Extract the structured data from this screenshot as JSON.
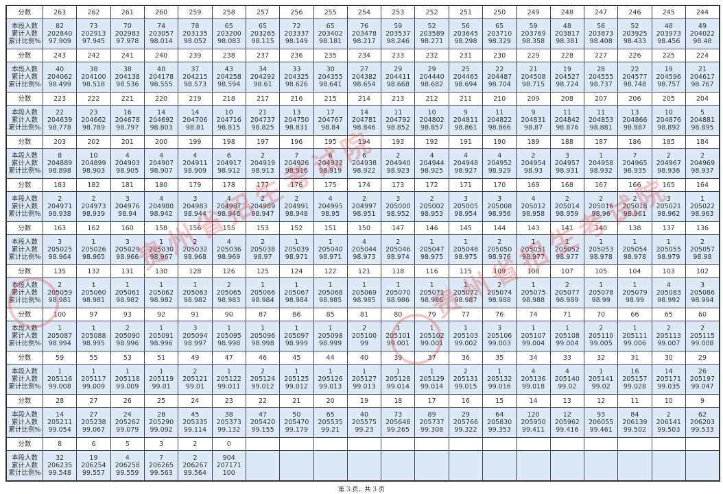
{
  "row_labels": {
    "score": "分数",
    "count": "本段人数",
    "cumulative": "累计人数",
    "percent": "累计比例%"
  },
  "watermark": "贵州省招生考试院",
  "footer": "第 3 页，共 3 页",
  "colors": {
    "data_row_bg": "#dde9f6",
    "watermark": "#dc3c3c"
  },
  "blocks": [
    {
      "scores": [
        263,
        262,
        261,
        260,
        259,
        258,
        257,
        256,
        255,
        254,
        253,
        252,
        251,
        250,
        249,
        248,
        247,
        246,
        245,
        244
      ],
      "counts": [
        82,
        73,
        70,
        74,
        78,
        65,
        65,
        72,
        65,
        76,
        59,
        52,
        56,
        65,
        59,
        48,
        56,
        52,
        48,
        49
      ],
      "cumulative": [
        202840,
        202913,
        202983,
        203057,
        203135,
        203200,
        203265,
        203337,
        203402,
        203478,
        203537,
        203589,
        203645,
        203710,
        203769,
        203817,
        203873,
        203925,
        203973,
        204022
      ],
      "percent": [
        "97.909",
        "97.945",
        "97.978",
        "98.014",
        "98.052",
        "98.083",
        "98.115",
        "98.149",
        "98.181",
        "98.217",
        "98.246",
        "98.271",
        "98.298",
        "98.329",
        "98.358",
        "98.381",
        "98.408",
        "98.433",
        "98.456",
        "98.48"
      ]
    },
    {
      "scores": [
        243,
        242,
        241,
        240,
        239,
        238,
        237,
        236,
        235,
        234,
        233,
        232,
        231,
        230,
        229,
        228,
        227,
        226,
        225,
        224
      ],
      "counts": [
        40,
        38,
        38,
        40,
        37,
        43,
        34,
        33,
        30,
        27,
        29,
        29,
        25,
        22,
        21,
        19,
        28,
        22,
        19,
        21
      ],
      "cumulative": [
        204062,
        204100,
        204138,
        204178,
        204215,
        204258,
        204292,
        204325,
        204355,
        204382,
        204411,
        204440,
        204465,
        204487,
        204508,
        204527,
        204555,
        204577,
        204596,
        204617
      ],
      "percent": [
        "98.499",
        "98.518",
        "98.536",
        "98.555",
        "98.573",
        "98.594",
        "98.61",
        "98.626",
        "98.641",
        "98.654",
        "98.668",
        "98.682",
        "98.694",
        "98.704",
        "98.715",
        "98.724",
        "98.737",
        "98.748",
        "98.757",
        "98.767"
      ]
    },
    {
      "scores": [
        223,
        222,
        221,
        220,
        219,
        218,
        217,
        216,
        215,
        214,
        213,
        212,
        211,
        210,
        209,
        208,
        207,
        206,
        205,
        204
      ],
      "counts": [
        22,
        23,
        16,
        14,
        14,
        10,
        21,
        13,
        17,
        14,
        11,
        10,
        9,
        11,
        9,
        11,
        11,
        13,
        10,
        5
      ],
      "cumulative": [
        204639,
        204662,
        204678,
        204692,
        204706,
        204716,
        204737,
        204750,
        204767,
        204781,
        204792,
        204802,
        204811,
        204822,
        204831,
        204842,
        204853,
        204866,
        204876,
        204881
      ],
      "percent": [
        "98.778",
        "98.789",
        "98.797",
        "98.803",
        "98.81",
        "98.815",
        "98.825",
        "98.831",
        "98.84",
        "98.846",
        "98.852",
        "98.857",
        "98.861",
        "98.866",
        "98.87",
        "98.876",
        "98.881",
        "98.887",
        "98.892",
        "98.895"
      ]
    },
    {
      "scores": [
        203,
        202,
        201,
        200,
        199,
        198,
        197,
        196,
        195,
        194,
        193,
        192,
        191,
        190,
        189,
        188,
        187,
        186,
        185,
        184
      ],
      "counts": [
        8,
        10,
        4,
        4,
        4,
        6,
        2,
        7,
        6,
        6,
        2,
        4,
        4,
        4,
        2,
        3,
        1,
        7,
        2,
        2
      ],
      "cumulative": [
        204889,
        204899,
        204903,
        204907,
        204911,
        204917,
        204919,
        204926,
        204932,
        204938,
        204940,
        204944,
        204948,
        204952,
        204954,
        204957,
        204958,
        204965,
        204967,
        204969
      ],
      "percent": [
        "98.898",
        "98.903",
        "98.905",
        "98.907",
        "98.909",
        "98.912",
        "98.913",
        "98.916",
        "98.919",
        "98.922",
        "98.923",
        "98.925",
        "98.927",
        "98.929",
        "98.93",
        "98.931",
        "98.932",
        "98.935",
        "98.936",
        "98.937"
      ]
    },
    {
      "scores": [
        183,
        182,
        181,
        180,
        179,
        178,
        177,
        176,
        175,
        174,
        173,
        172,
        171,
        170,
        169,
        168,
        167,
        166,
        165,
        164
      ],
      "counts": [
        2,
        2,
        3,
        4,
        3,
        4,
        2,
        2,
        4,
        2,
        3,
        2,
        3,
        3,
        4,
        2,
        2,
        2,
        3,
        1
      ],
      "cumulative": [
        204971,
        204973,
        204976,
        204980,
        204983,
        204987,
        204989,
        204991,
        204995,
        204997,
        205000,
        205002,
        205005,
        205008,
        205012,
        205014,
        205016,
        205018,
        205021,
        205022
      ],
      "percent": [
        "98.938",
        "98.939",
        "98.94",
        "98.942",
        "98.944",
        "98.946",
        "98.947",
        "98.948",
        "98.95",
        "98.951",
        "98.952",
        "98.953",
        "98.954",
        "98.956",
        "98.958",
        "98.959",
        "98.96",
        "98.961",
        "98.962",
        "98.963"
      ]
    },
    {
      "scores": [
        163,
        162,
        160,
        158,
        156,
        155,
        153,
        152,
        151,
        150,
        147,
        146,
        145,
        144,
        143,
        141,
        140,
        138,
        137,
        136
      ],
      "counts": [
        3,
        1,
        3,
        1,
        2,
        4,
        2,
        1,
        1,
        4,
        2,
        1,
        1,
        2,
        1,
        1,
        1,
        1,
        1,
        2
      ],
      "cumulative": [
        205025,
        205026,
        205029,
        205030,
        205032,
        205036,
        205038,
        205039,
        205040,
        205044,
        205046,
        205047,
        205048,
        205050,
        205051,
        205052,
        205053,
        205054,
        205055,
        205057
      ],
      "percent": [
        "98.964",
        "98.965",
        "98.966",
        "98.967",
        "98.968",
        "98.969",
        "98.97",
        "98.971",
        "98.971",
        "98.973",
        "98.974",
        "98.975",
        "98.975",
        "98.976",
        "98.977",
        "98.977",
        "98.978",
        "98.978",
        "98.979",
        "98.98"
      ]
    },
    {
      "scores": [
        135,
        132,
        131,
        130,
        128,
        126,
        125,
        124,
        122,
        121,
        118,
        116,
        115,
        109,
        108,
        107,
        105,
        104,
        103,
        102
      ],
      "counts": [
        2,
        1,
        1,
        1,
        1,
        2,
        1,
        1,
        1,
        1,
        1,
        1,
        1,
        2,
        1,
        2,
        1,
        1,
        4,
        3
      ],
      "cumulative": [
        205059,
        205060,
        205061,
        205062,
        205063,
        205065,
        205066,
        205067,
        205068,
        205069,
        205070,
        205071,
        205072,
        205074,
        205075,
        205077,
        205078,
        205079,
        205083,
        205086
      ],
      "percent": [
        "98.981",
        "98.981",
        "98.982",
        "98.982",
        "98.982",
        "98.983",
        "98.984",
        "98.984",
        "98.985",
        "98.985",
        "98.986",
        "98.986",
        "98.987",
        "98.988",
        "98.988",
        "98.989",
        "98.99",
        "98.99",
        "98.992",
        "98.994"
      ]
    },
    {
      "scores": [
        100,
        97,
        93,
        92,
        91,
        90,
        87,
        86,
        85,
        81,
        80,
        79,
        77,
        76,
        74,
        71,
        70,
        66,
        65,
        60
      ],
      "counts": [
        1,
        1,
        2,
        1,
        3,
        1,
        1,
        1,
        1,
        2,
        1,
        1,
        1,
        3,
        1,
        1,
        2,
        1,
        2,
        2
      ],
      "cumulative": [
        205087,
        205088,
        205090,
        205091,
        205094,
        205095,
        205096,
        205097,
        205098,
        205100,
        205101,
        205102,
        205103,
        205106,
        205107,
        205108,
        205110,
        205111,
        205113,
        205115
      ],
      "percent": [
        "98.994",
        "98.995",
        "98.996",
        "98.996",
        "98.997",
        "98.998",
        "98.998",
        "98.999",
        "98.999",
        "99",
        "99.001",
        "99.001",
        "99.002",
        "99.003",
        "99.004",
        "99.004",
        "99.005",
        "99.006",
        "99.007",
        "99.008"
      ]
    },
    {
      "scores": [
        59,
        55,
        53,
        51,
        49,
        47,
        46,
        45,
        44,
        40,
        39,
        37,
        36,
        35,
        34,
        33,
        32,
        31,
        30,
        29
      ],
      "counts": [
        1,
        1,
        1,
        1,
        2,
        1,
        2,
        1,
        1,
        1,
        1,
        1,
        2,
        1,
        4,
        4,
        1,
        16,
        14,
        26
      ],
      "cumulative": [
        205116,
        205117,
        205118,
        205119,
        205121,
        205122,
        205124,
        205125,
        205126,
        205127,
        205128,
        205129,
        205131,
        205132,
        205136,
        205140,
        205141,
        205157,
        205171,
        205197
      ],
      "percent": [
        "99.008",
        "99.009",
        "99.009",
        "99.01",
        "99.01",
        "99.011",
        "99.012",
        "99.012",
        "99.013",
        "99.013",
        "99.014",
        "99.014",
        "99.015",
        "99.016",
        "99.018",
        "99.02",
        "99.02",
        "99.028",
        "99.035",
        "99.047"
      ]
    },
    {
      "scores": [
        28,
        27,
        26,
        25,
        24,
        23,
        22,
        21,
        20,
        19,
        18,
        17,
        16,
        15,
        14,
        13,
        12,
        11,
        10,
        9
      ],
      "counts": [
        14,
        27,
        24,
        28,
        45,
        38,
        47,
        50,
        65,
        40,
        73,
        89,
        29,
        64,
        120,
        12,
        93,
        84,
        2,
        62
      ],
      "cumulative": [
        205211,
        205238,
        205262,
        205290,
        205335,
        205373,
        205420,
        205470,
        205535,
        205575,
        205648,
        205737,
        205766,
        205830,
        205950,
        205962,
        206055,
        206139,
        206141,
        206203
      ],
      "percent": [
        "99.054",
        "99.067",
        "99.079",
        "99.092",
        "99.114",
        "99.132",
        "99.155",
        "99.179",
        "99.21",
        "99.23",
        "99.265",
        "99.308",
        "99.322",
        "99.353",
        "99.411",
        "99.416",
        "99.461",
        "99.502",
        "99.503",
        "99.533"
      ]
    },
    {
      "scores": [
        8,
        6,
        5,
        3,
        2,
        0
      ],
      "counts": [
        32,
        19,
        4,
        7,
        2,
        904
      ],
      "cumulative": [
        206235,
        206254,
        206258,
        206265,
        206267,
        207171
      ],
      "percent": [
        "99.548",
        "99.557",
        "99.559",
        "99.563",
        "99.564",
        "100"
      ]
    }
  ]
}
